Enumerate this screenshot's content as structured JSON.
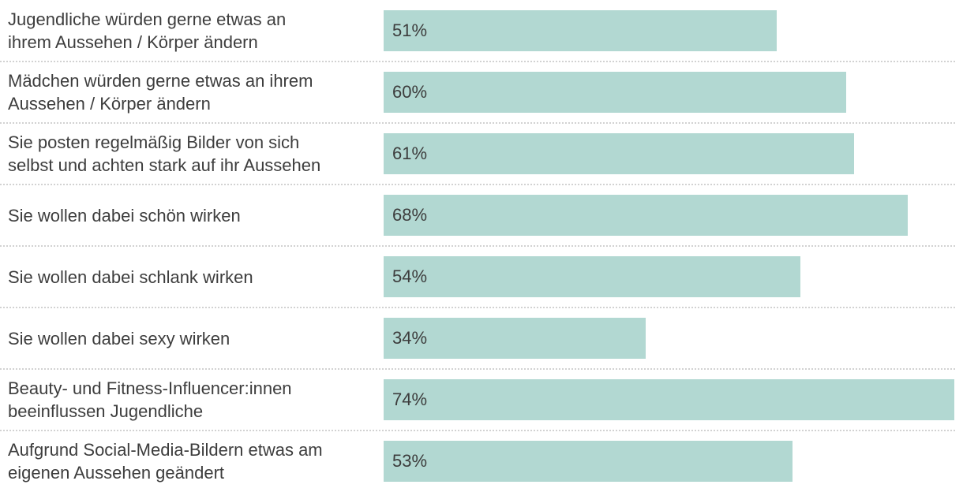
{
  "chart_data": {
    "type": "bar",
    "orientation": "horizontal",
    "title": "",
    "xlabel": "",
    "ylabel": "",
    "legend": "none",
    "grid": "dotted-row-separators",
    "axis_ticks": "none",
    "xlim": [
      0,
      74
    ],
    "scale_max": 74,
    "categories": [
      "Jugendliche würden gerne etwas an ihrem Aussehen / Körper ändern",
      "Mädchen würden gerne etwas an ihrem Aussehen / Körper ändern",
      "Sie posten regelmäßig Bilder von sich selbst und achten stark auf ihr Aussehen",
      "Sie wollen dabei schön wirken",
      "Sie wollen dabei schlank wirken",
      "Sie wollen dabei sexy wirken",
      "Beauty- und Fitness-Influencer:innen beeinflussen Jugendliche",
      "Aufgrund Social-Media-Bildern etwas am eigenen Aussehen geändert"
    ],
    "values": [
      51,
      60,
      61,
      68,
      54,
      34,
      74,
      53
    ],
    "value_labels": [
      "51%",
      "60%",
      "61%",
      "68%",
      "54%",
      "34%",
      "74%",
      "53%"
    ],
    "label_lines": [
      [
        "Jugendliche würden gerne etwas an",
        "ihrem Aussehen / Körper ändern"
      ],
      [
        "Mädchen würden gerne etwas an ihrem",
        "Aussehen / Körper ändern"
      ],
      [
        "Sie posten regelmäßig Bilder von sich",
        "selbst und achten stark auf ihr Aussehen"
      ],
      [
        "Sie wollen dabei schön wirken"
      ],
      [
        "Sie wollen dabei schlank wirken"
      ],
      [
        "Sie wollen dabei sexy wirken"
      ],
      [
        "Beauty- und Fitness-Influencer:innen",
        "beeinflussen Jugendliche"
      ],
      [
        "Aufgrund Social-Media-Bildern etwas am",
        "eigenen Aussehen geändert"
      ]
    ],
    "colors": {
      "bar": "#b2d8d2",
      "label_text": "#3d3d3d",
      "value_text": "#3d3d3d",
      "separator": "#d2d2d2",
      "background": "#ffffff"
    }
  }
}
